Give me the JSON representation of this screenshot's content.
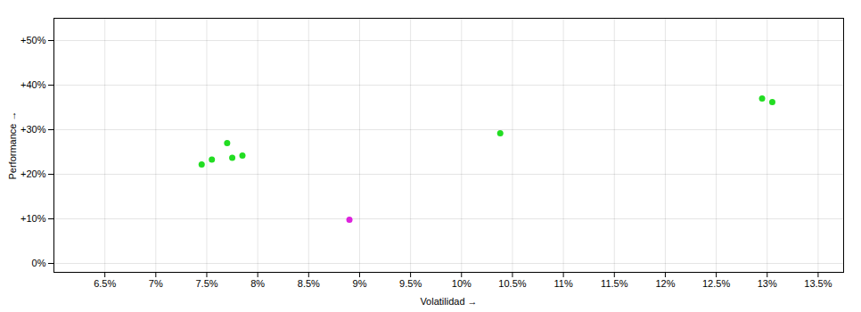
{
  "chart_data": {
    "type": "scatter",
    "xlabel": "Volatilidad",
    "ylabel": "Performance",
    "xlim": [
      0.06,
      0.1375
    ],
    "ylim": [
      -0.02,
      0.55
    ],
    "xticks": [
      {
        "value": 0.065,
        "label": "6.5%"
      },
      {
        "value": 0.07,
        "label": "7%"
      },
      {
        "value": 0.075,
        "label": "7.5%"
      },
      {
        "value": 0.08,
        "label": "8%"
      },
      {
        "value": 0.085,
        "label": "8.5%"
      },
      {
        "value": 0.09,
        "label": "9%"
      },
      {
        "value": 0.095,
        "label": "9.5%"
      },
      {
        "value": 0.1,
        "label": "10%"
      },
      {
        "value": 0.105,
        "label": "10.5%"
      },
      {
        "value": 0.11,
        "label": "11%"
      },
      {
        "value": 0.115,
        "label": "11.5%"
      },
      {
        "value": 0.12,
        "label": "12%"
      },
      {
        "value": 0.125,
        "label": "12.5%"
      },
      {
        "value": 0.13,
        "label": "13%"
      },
      {
        "value": 0.135,
        "label": "13.5%"
      }
    ],
    "yticks": [
      {
        "value": 0.0,
        "label": "0%"
      },
      {
        "value": 0.1,
        "label": "+10%"
      },
      {
        "value": 0.2,
        "label": "+20%"
      },
      {
        "value": 0.3,
        "label": "+30%"
      },
      {
        "value": 0.4,
        "label": "+40%"
      },
      {
        "value": 0.5,
        "label": "+50%"
      }
    ],
    "grid": true,
    "series": [
      {
        "color": "#22dd22",
        "x": [
          0.077,
          0.0755,
          0.0775,
          0.0785,
          0.0745,
          0.1038,
          0.1295,
          0.1305
        ],
        "values": [
          0.27,
          0.233,
          0.237,
          0.242,
          0.222,
          0.292,
          0.37,
          0.362
        ]
      },
      {
        "color": "#dd22dd",
        "x": [
          0.089
        ],
        "values": [
          0.098
        ]
      }
    ]
  }
}
